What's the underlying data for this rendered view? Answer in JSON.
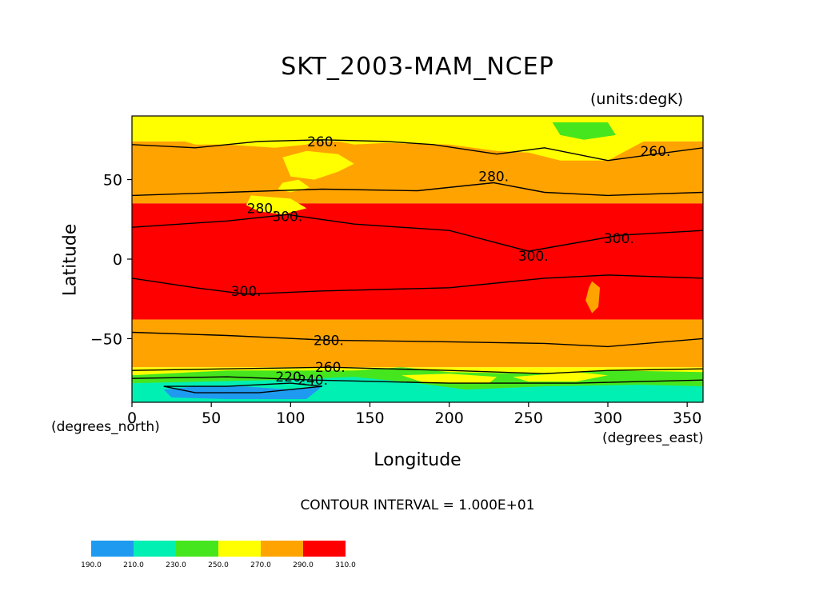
{
  "chart_data": {
    "type": "heatmap",
    "title": "SKT_2003-MAM_NCEP",
    "units": "(units:degK)",
    "xlabel": "Longitude",
    "ylabel": "Latitude",
    "x_unit_label": "(degrees_east)",
    "y_unit_label": "(degrees_north)",
    "xlim": [
      0,
      360
    ],
    "ylim": [
      -90,
      90
    ],
    "x_ticks": [
      0,
      50,
      100,
      150,
      200,
      250,
      300,
      350
    ],
    "y_ticks": [
      -50,
      0,
      50
    ],
    "contour_interval_text": "CONTOUR INTERVAL = 1.000E+01",
    "color_levels": [
      190,
      210,
      230,
      250,
      270,
      290,
      310
    ],
    "color_level_labels": [
      "190.0",
      "210.0",
      "230.0",
      "250.0",
      "270.0",
      "290.0",
      "310.0"
    ],
    "bands": [
      {
        "min": 190,
        "max": 210,
        "color": "#1e9bf0"
      },
      {
        "min": 210,
        "max": 230,
        "color": "#00f0b4"
      },
      {
        "min": 230,
        "max": 250,
        "color": "#46e61e"
      },
      {
        "min": 250,
        "max": 270,
        "color": "#ffff00"
      },
      {
        "min": 270,
        "max": 290,
        "color": "#ffa300"
      },
      {
        "min": 290,
        "max": 310,
        "color": "#ff0000"
      }
    ],
    "contour_labels": [
      {
        "text": "260",
        "lon": 120,
        "lat": 74
      },
      {
        "text": "260",
        "lon": 330,
        "lat": 68
      },
      {
        "text": "280",
        "lon": 228,
        "lat": 52
      },
      {
        "text": "280",
        "lon": 82,
        "lat": 32
      },
      {
        "text": "300",
        "lon": 98,
        "lat": 27
      },
      {
        "text": "300",
        "lon": 307,
        "lat": 13
      },
      {
        "text": "300",
        "lon": 253,
        "lat": 2
      },
      {
        "text": "300",
        "lon": 72,
        "lat": -20
      },
      {
        "text": "280",
        "lon": 124,
        "lat": -51
      },
      {
        "text": "260",
        "lon": 125,
        "lat": -68
      },
      {
        "text": "240",
        "lon": 114,
        "lat": -76
      },
      {
        "text": "220",
        "lon": 100,
        "lat": -74
      }
    ]
  }
}
